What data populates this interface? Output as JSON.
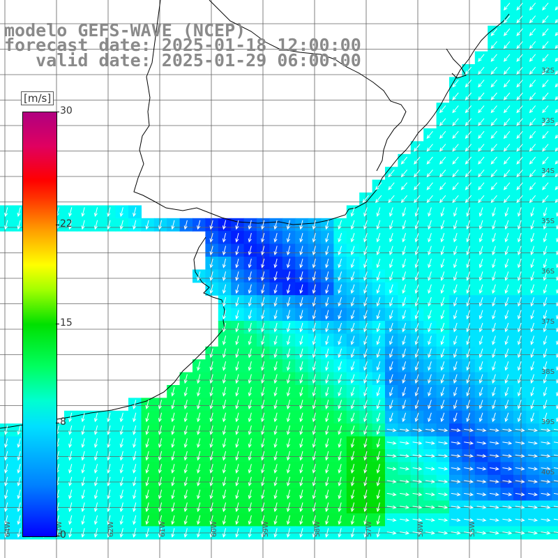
{
  "title": {
    "line1": "modelo GEFS-WAVE (NCEP)",
    "line2": "forecast date: 2025-01-18 12:00:00",
    "line3": "   valid date: 2025-01-29 06:00:00"
  },
  "colorbar": {
    "unit": "[m/s]",
    "ticks": [
      "30",
      "22",
      "15",
      "8",
      "0"
    ],
    "tick_values": [
      30,
      22,
      15,
      8,
      0
    ],
    "vmin": 0,
    "vmax": 30
  },
  "map": {
    "lon_labels": [
      "64W",
      "63W",
      "62W",
      "61W",
      "60W",
      "59W",
      "58W",
      "57W",
      "56W",
      "55W"
    ],
    "lat_labels": [
      "32S",
      "33S",
      "34S",
      "35S",
      "36S",
      "37S",
      "38S",
      "39S",
      "40S"
    ],
    "land_color": "#ffffff",
    "coast_color": "#000000",
    "arrow_color": "#ffffff",
    "grid_color": "#606060"
  }
}
